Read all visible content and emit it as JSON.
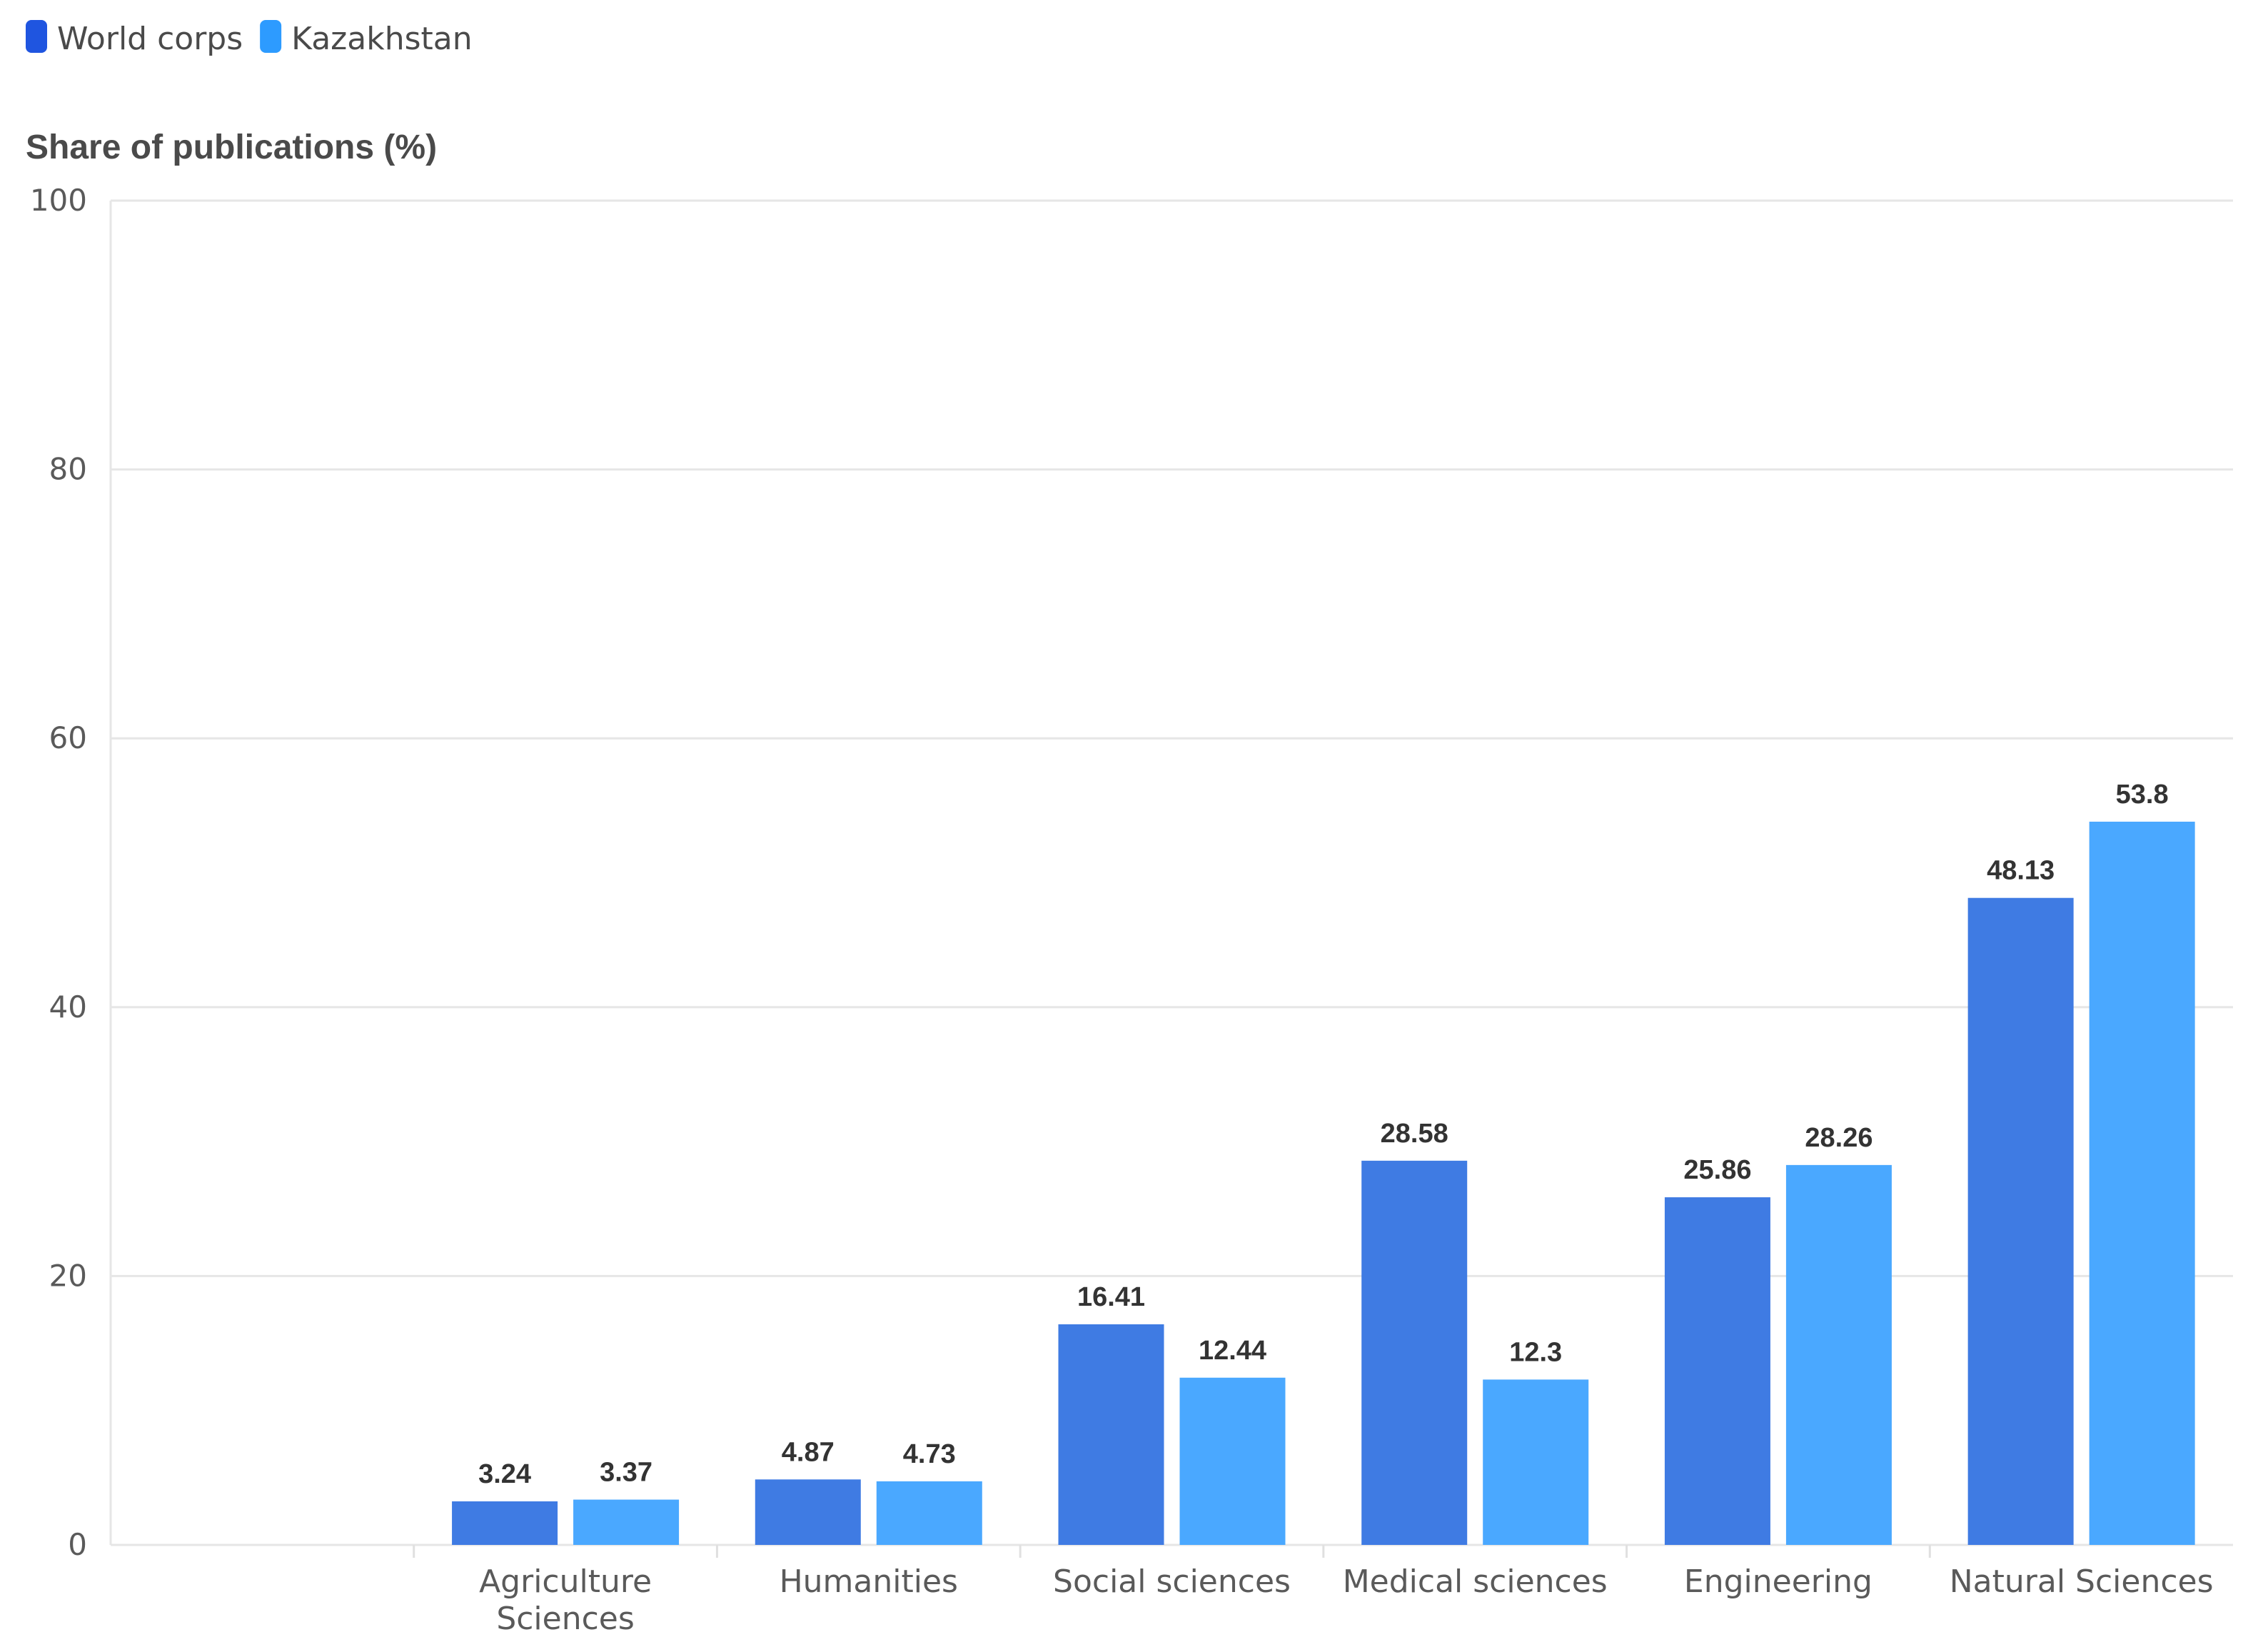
{
  "chart_data": {
    "type": "bar",
    "title": "",
    "ylabel": "Share of publications (%)",
    "xlabel": "",
    "ylim": [
      0,
      100
    ],
    "yticks": [
      0,
      20,
      40,
      60,
      80,
      100
    ],
    "grid": true,
    "legend_position": "top-left",
    "categories": [
      [
        "Agriculture",
        "Sciences"
      ],
      [
        "Humanities"
      ],
      [
        "Social sciences"
      ],
      [
        "Medical sciences"
      ],
      [
        "Engineering"
      ],
      [
        "Natural Sciences"
      ]
    ],
    "series": [
      {
        "name": "World corps",
        "color": "#3f7be3",
        "legend_color": "#1f55e0",
        "values": [
          3.24,
          4.87,
          16.41,
          28.58,
          25.86,
          48.13
        ]
      },
      {
        "name": "Kazakhstan",
        "color": "#4aa8ff",
        "legend_color": "#2d9bff",
        "values": [
          3.37,
          4.73,
          12.44,
          12.3,
          28.26,
          53.8
        ]
      }
    ]
  }
}
